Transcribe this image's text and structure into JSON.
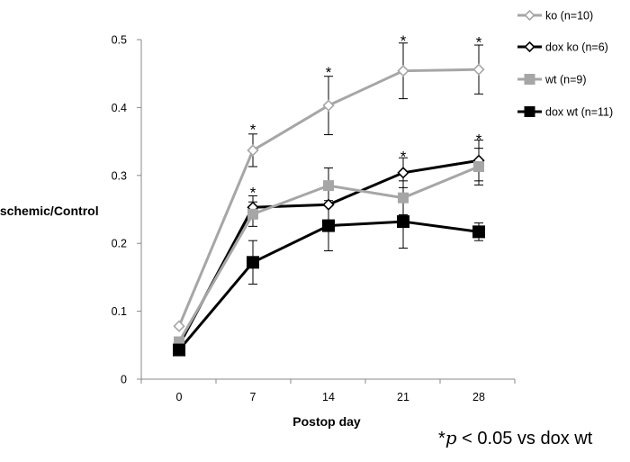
{
  "chart_data": {
    "type": "line",
    "title": "",
    "xlabel": "Postop day",
    "ylabel": "Ischemic/Control",
    "x": [
      0,
      7,
      14,
      21,
      28
    ],
    "x_tick_labels": [
      "0",
      "7",
      "14",
      "21",
      "28"
    ],
    "ylim": [
      0,
      0.5
    ],
    "y_ticks": [
      0,
      0.1,
      0.2,
      0.3,
      0.4,
      0.5
    ],
    "y_tick_labels": [
      "0",
      "0.1",
      "0.2",
      "0.3",
      "0.4",
      "0.5"
    ],
    "legend_position": "top-right",
    "series": [
      {
        "name": "ko (n=10)",
        "marker": "diamond-open",
        "color": "#a6a6a6",
        "values": [
          0.078,
          0.337,
          0.403,
          0.454,
          0.456
        ],
        "errors": [
          0.0,
          0.024,
          0.043,
          0.041,
          0.036
        ]
      },
      {
        "name": "dox ko (n=6)",
        "marker": "diamond-open",
        "color": "#000000",
        "values": [
          0.05,
          0.253,
          0.257,
          0.304,
          0.322
        ],
        "errors": [
          0.0,
          0.017,
          0.0,
          0.022,
          0.03
        ]
      },
      {
        "name": "wt (n=9)",
        "marker": "square",
        "color": "#a6a6a6",
        "values": [
          0.055,
          0.243,
          0.285,
          0.267,
          0.313
        ],
        "errors": [
          0.0,
          0.018,
          0.026,
          0.025,
          0.027
        ]
      },
      {
        "name": "dox wt (n=11)",
        "marker": "square",
        "color": "#000000",
        "values": [
          0.043,
          0.172,
          0.226,
          0.232,
          0.217
        ],
        "errors": [
          0.0,
          0.032,
          0.037,
          0.039,
          0.013
        ]
      }
    ],
    "significance_marks": [
      {
        "x": 7,
        "y": 0.375,
        "label": "*"
      },
      {
        "x": 7,
        "y": 0.282,
        "label": "*"
      },
      {
        "x": 14,
        "y": 0.459,
        "label": "*"
      },
      {
        "x": 21,
        "y": 0.505,
        "label": "*"
      },
      {
        "x": 21,
        "y": 0.335,
        "label": "*"
      },
      {
        "x": 28,
        "y": 0.503,
        "label": "*"
      },
      {
        "x": 28,
        "y": 0.36,
        "label": "*"
      }
    ],
    "footnote": {
      "prefix": "*",
      "symbol": "p",
      "text": " < 0.05 vs dox wt"
    }
  }
}
